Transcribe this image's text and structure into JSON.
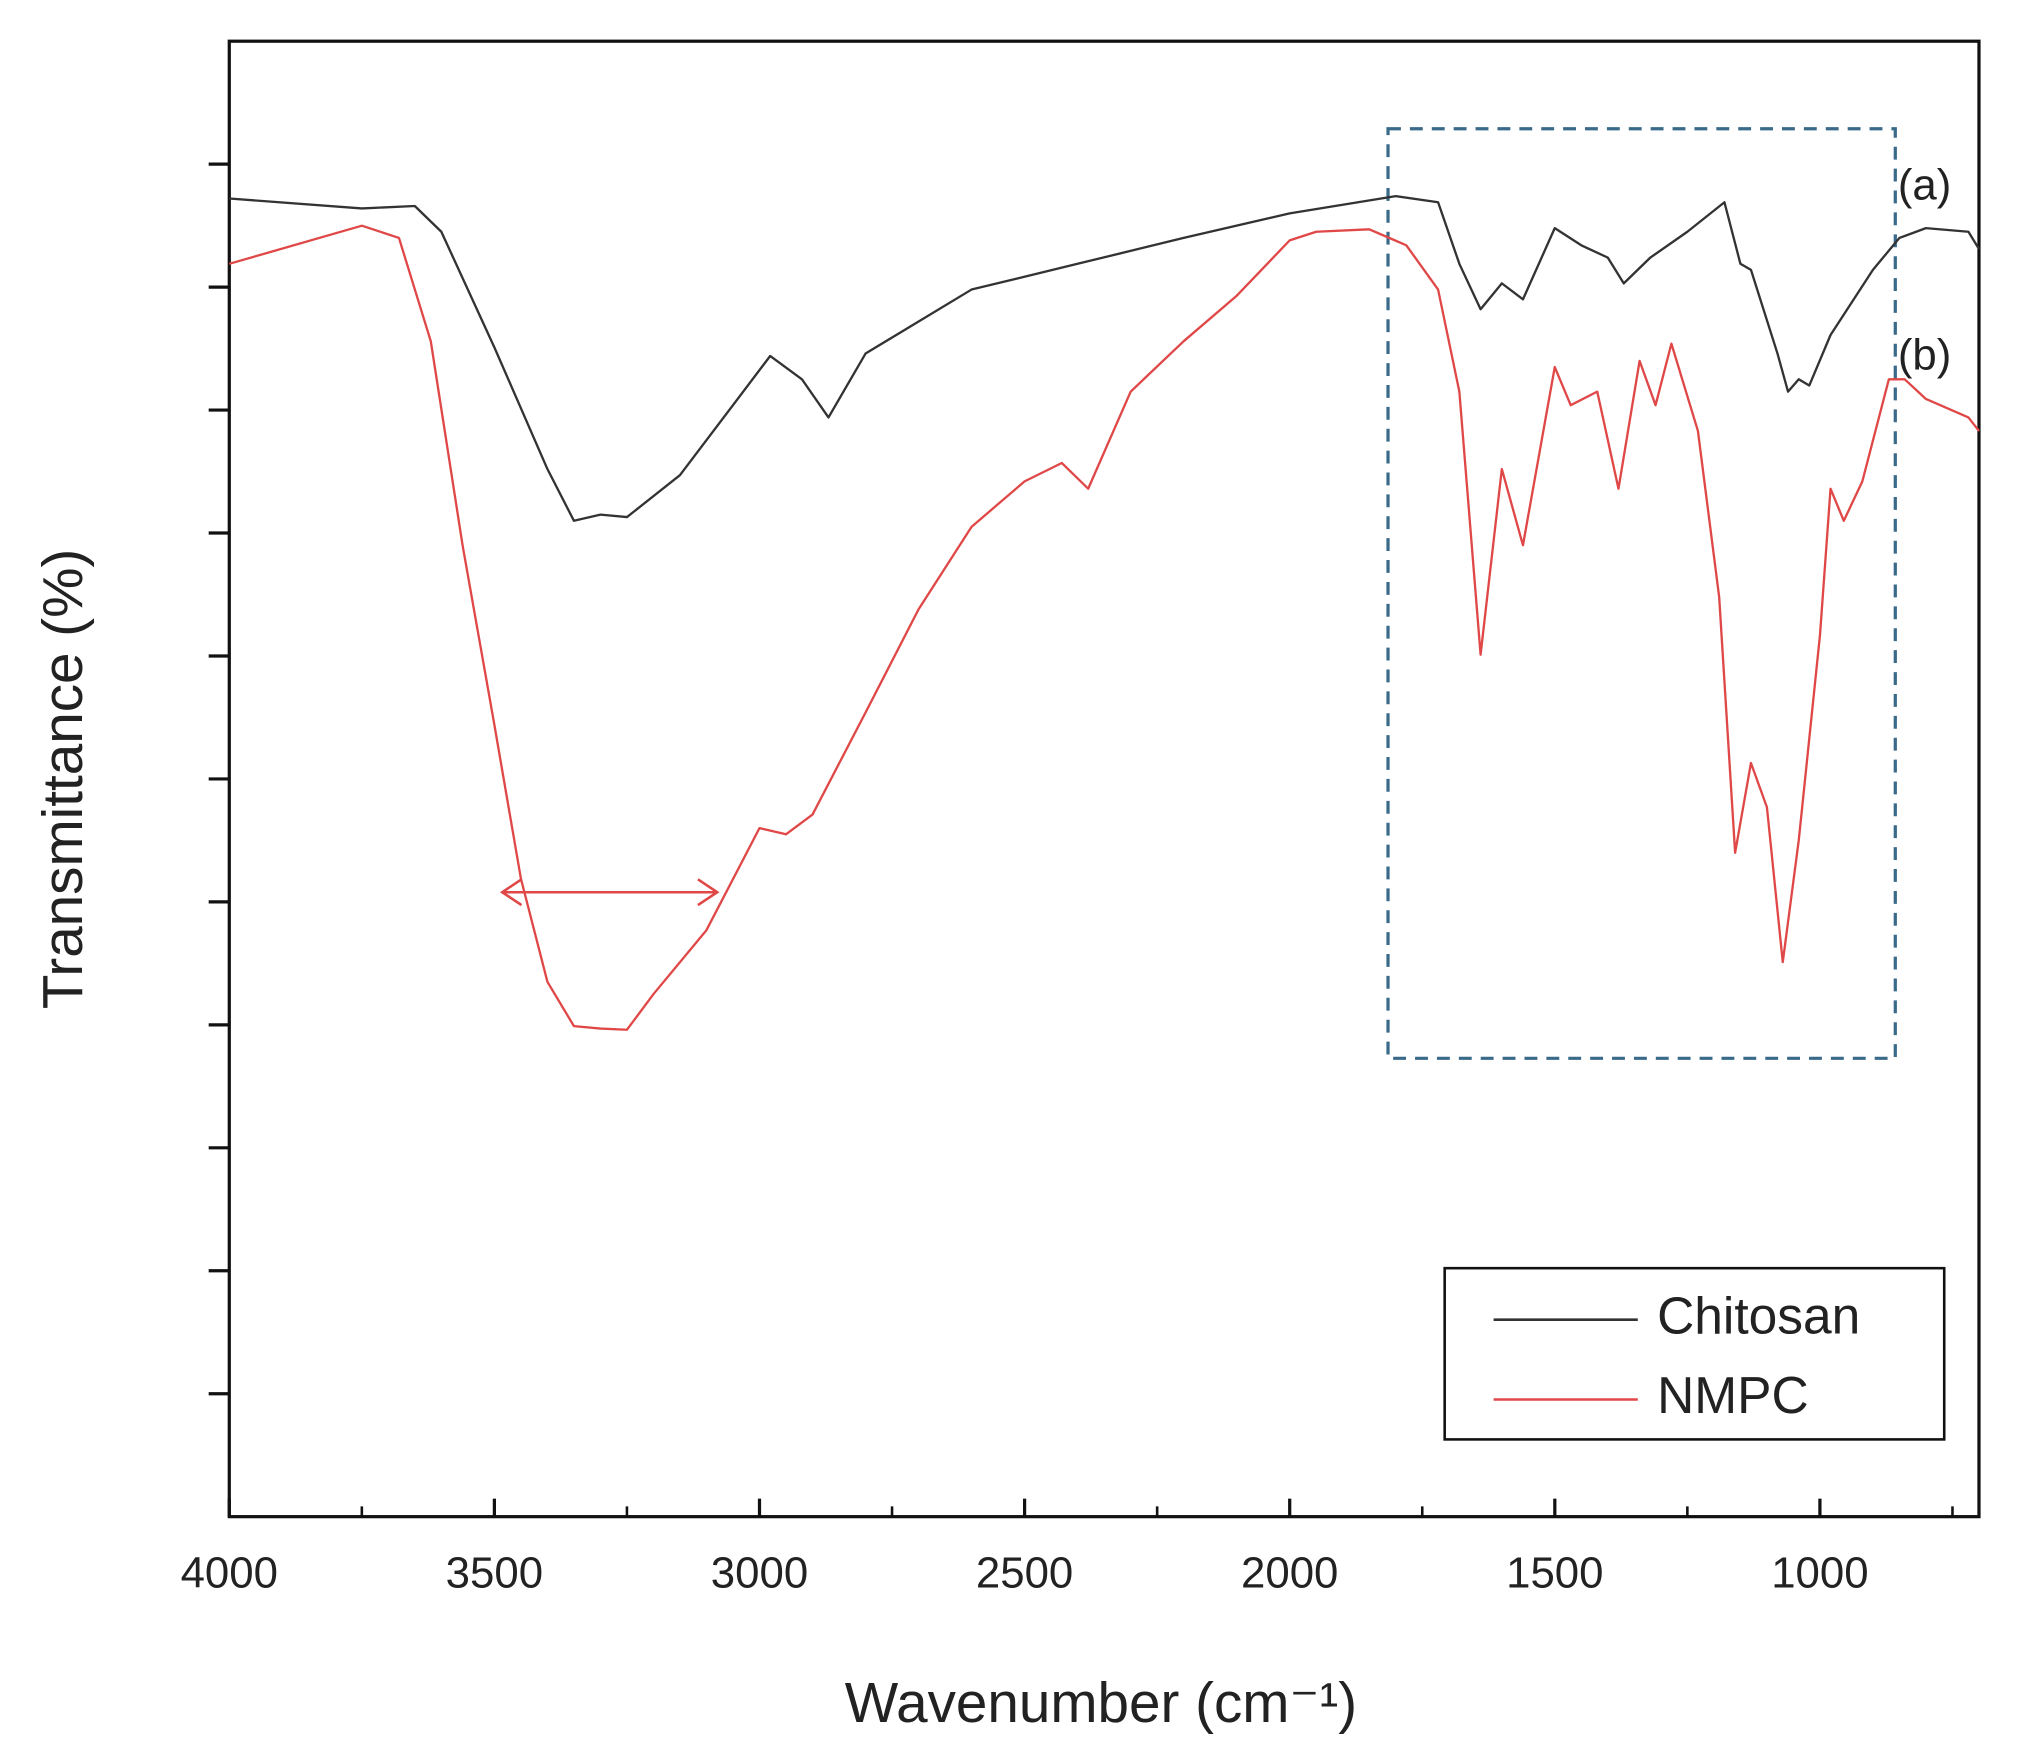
{
  "chart_data": {
    "type": "line",
    "xlabel": "Wavenumber (cm⁻¹)",
    "ylabel": "Transmittance (%)",
    "xlim": [
      4000,
      700
    ],
    "ylim": [
      0,
      12
    ],
    "xticks": [
      4000,
      3500,
      3000,
      2500,
      2000,
      1500,
      1000
    ],
    "minor_xticks": [
      3750,
      3250,
      2750,
      2250,
      1750,
      1250,
      750
    ],
    "yticks": [
      1,
      2,
      3,
      4,
      5,
      6,
      7,
      8,
      9,
      10,
      11
    ],
    "legend": "lower right",
    "annotations": [
      "(a)",
      "(b)"
    ],
    "series": [
      {
        "name": "Chitosan",
        "color": "#333333",
        "x": [
          4000,
          3750,
          3650,
          3600,
          3500,
          3400,
          3350,
          3300,
          3250,
          3150,
          3050,
          2980,
          2920,
          2870,
          2800,
          2600,
          2400,
          2200,
          2000,
          1800,
          1720,
          1680,
          1640,
          1600,
          1560,
          1500,
          1450,
          1400,
          1370,
          1320,
          1250,
          1180,
          1150,
          1130,
          1080,
          1060,
          1040,
          1020,
          980,
          900,
          850,
          800,
          720,
          700
        ],
        "values": [
          10.72,
          10.64,
          10.66,
          10.45,
          9.51,
          8.52,
          8.1,
          8.15,
          8.13,
          8.47,
          9.04,
          9.44,
          9.25,
          8.94,
          9.46,
          9.98,
          10.19,
          10.4,
          10.6,
          10.74,
          10.69,
          10.19,
          9.82,
          10.03,
          9.9,
          10.48,
          10.34,
          10.24,
          10.03,
          10.24,
          10.45,
          10.69,
          10.19,
          10.14,
          9.46,
          9.15,
          9.25,
          9.2,
          9.61,
          10.14,
          10.4,
          10.48,
          10.45,
          10.31
        ]
      },
      {
        "name": "NMPC",
        "color": "#e04848",
        "x": [
          4000,
          3750,
          3680,
          3620,
          3560,
          3500,
          3450,
          3400,
          3350,
          3300,
          3250,
          3200,
          3100,
          3000,
          2950,
          2900,
          2800,
          2700,
          2600,
          2500,
          2430,
          2380,
          2300,
          2200,
          2100,
          2000,
          1950,
          1850,
          1780,
          1720,
          1680,
          1640,
          1600,
          1560,
          1500,
          1470,
          1420,
          1380,
          1340,
          1310,
          1280,
          1230,
          1190,
          1160,
          1130,
          1100,
          1070,
          1040,
          1000,
          980,
          955,
          920,
          870,
          840,
          800,
          720,
          700
        ],
        "values": [
          10.19,
          10.5,
          10.4,
          9.56,
          7.9,
          6.44,
          5.19,
          4.35,
          3.99,
          3.97,
          3.96,
          4.25,
          4.77,
          5.6,
          5.55,
          5.71,
          6.54,
          7.38,
          8.05,
          8.42,
          8.57,
          8.36,
          9.15,
          9.56,
          9.93,
          10.38,
          10.45,
          10.47,
          10.34,
          9.98,
          9.15,
          7.01,
          8.52,
          7.9,
          9.35,
          9.04,
          9.15,
          8.36,
          9.4,
          9.04,
          9.54,
          8.83,
          7.48,
          5.4,
          6.13,
          5.77,
          4.51,
          5.5,
          7.17,
          8.36,
          8.1,
          8.42,
          9.25,
          9.25,
          9.09,
          8.94,
          8.83
        ]
      }
    ]
  }
}
